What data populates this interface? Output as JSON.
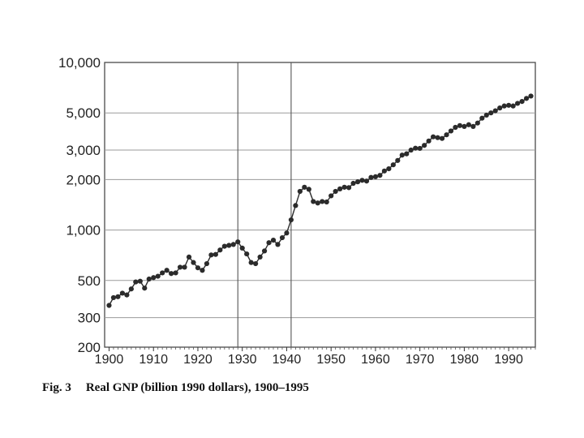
{
  "caption": {
    "figure": "Fig. 3",
    "title": "Real GNP (billion 1990 dollars), 1900–1995"
  },
  "chart_data": {
    "type": "line",
    "title": "Real GNP (billion 1990 dollars), 1900–1995",
    "xlabel": "",
    "ylabel": "",
    "y_scale": "log",
    "xlim": [
      1899,
      1996
    ],
    "ylim": [
      200,
      10000
    ],
    "x_ticks": [
      1900,
      1910,
      1920,
      1930,
      1940,
      1950,
      1960,
      1970,
      1980,
      1990
    ],
    "x_tick_labels": [
      "1900",
      "1910",
      "1920",
      "1930",
      "1940",
      "1950",
      "1960",
      "1970",
      "1980",
      "1990"
    ],
    "y_ticks": [
      200,
      300,
      500,
      1000,
      2000,
      3000,
      5000,
      10000
    ],
    "y_tick_labels": [
      "200",
      "300",
      "500",
      "1,000",
      "2,000",
      "3,000",
      "5,000",
      "10,000"
    ],
    "grid": "horizontal",
    "reference_lines_x": [
      1929,
      1941
    ],
    "marker": "filled-circle",
    "series_color": "#2b2b2b",
    "x": [
      1900,
      1901,
      1902,
      1903,
      1904,
      1905,
      1906,
      1907,
      1908,
      1909,
      1910,
      1911,
      1912,
      1913,
      1914,
      1915,
      1916,
      1917,
      1918,
      1919,
      1920,
      1921,
      1922,
      1923,
      1924,
      1925,
      1926,
      1927,
      1928,
      1929,
      1930,
      1931,
      1932,
      1933,
      1934,
      1935,
      1936,
      1937,
      1938,
      1939,
      1940,
      1941,
      1942,
      1943,
      1944,
      1945,
      1946,
      1947,
      1948,
      1949,
      1950,
      1951,
      1952,
      1953,
      1954,
      1955,
      1956,
      1957,
      1958,
      1959,
      1960,
      1961,
      1962,
      1963,
      1964,
      1965,
      1966,
      1967,
      1968,
      1969,
      1970,
      1971,
      1972,
      1973,
      1974,
      1975,
      1976,
      1977,
      1978,
      1979,
      1980,
      1981,
      1982,
      1983,
      1984,
      1985,
      1986,
      1987,
      1988,
      1989,
      1990,
      1991,
      1992,
      1993,
      1994,
      1995
    ],
    "y": [
      355,
      395,
      400,
      420,
      410,
      445,
      490,
      495,
      450,
      510,
      520,
      530,
      555,
      575,
      550,
      555,
      600,
      600,
      690,
      640,
      595,
      575,
      630,
      710,
      715,
      760,
      800,
      810,
      820,
      850,
      780,
      720,
      640,
      630,
      690,
      750,
      840,
      870,
      820,
      900,
      960,
      1150,
      1400,
      1700,
      1800,
      1750,
      1480,
      1450,
      1480,
      1470,
      1600,
      1700,
      1760,
      1800,
      1790,
      1900,
      1940,
      1980,
      1960,
      2060,
      2080,
      2120,
      2250,
      2320,
      2450,
      2600,
      2800,
      2850,
      3000,
      3080,
      3070,
      3200,
      3400,
      3600,
      3560,
      3520,
      3700,
      3900,
      4100,
      4200,
      4150,
      4250,
      4150,
      4350,
      4650,
      4850,
      5000,
      5150,
      5350,
      5500,
      5550,
      5500,
      5700,
      5850,
      6100,
      6300
    ]
  }
}
